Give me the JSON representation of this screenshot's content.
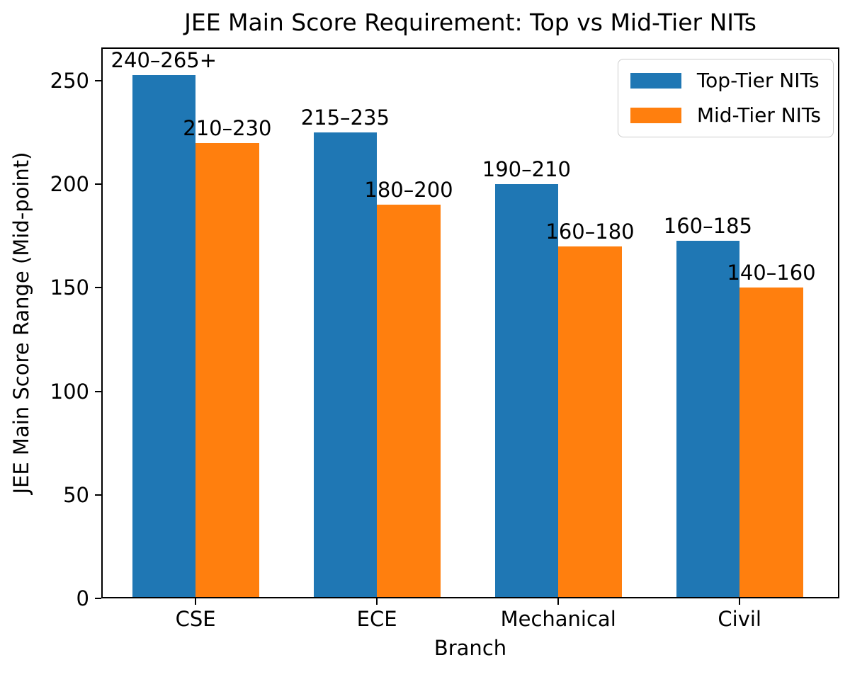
{
  "chart_data": {
    "type": "bar",
    "title": "JEE Main Score Requirement: Top vs Mid-Tier NITs",
    "xlabel": "Branch",
    "ylabel": "JEE Main Score Range (Mid-point)",
    "categories": [
      "CSE",
      "ECE",
      "Mechanical",
      "Civil"
    ],
    "series": [
      {
        "name": "Top-Tier NITs",
        "color": "#1f77b4",
        "values": [
          252.5,
          225,
          200,
          172.5
        ],
        "labels": [
          "240–265+",
          "215–235",
          "190–210",
          "160–185"
        ]
      },
      {
        "name": "Mid-Tier NITs",
        "color": "#ff7f0e",
        "values": [
          220,
          190,
          170,
          150
        ],
        "labels": [
          "210–230",
          "180–200",
          "160–180",
          "140–160"
        ]
      }
    ],
    "yticks": [
      0,
      50,
      100,
      150,
      200,
      250
    ],
    "ylim": [
      0,
      266
    ],
    "xlim": [
      -0.52,
      3.55
    ],
    "bar_width": 0.35,
    "grid": false,
    "legend_position": "upper right",
    "axis_color": "#000000",
    "background_color": "#ffffff"
  }
}
